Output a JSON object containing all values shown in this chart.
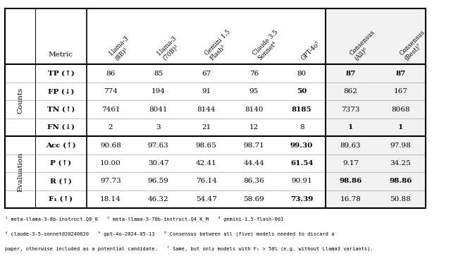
{
  "col_headers": [
    "Metric",
    "Llama-3\n(8B)¹",
    "Llama-3\n(70B)²",
    "Gemini 1.5\nFlash³",
    "Claude 3.5\nSonnet⁴",
    "GPT-4o⁵",
    "Consensus\n(All)⁶",
    "Consensus\n(Best)⁷"
  ],
  "section_labels": [
    "Counts",
    "Evaluation"
  ],
  "rows": [
    {
      "section": "Counts",
      "metric": "TP (↑)",
      "values": [
        "86",
        "85",
        "67",
        "76",
        "80",
        "87",
        "87"
      ],
      "bold_metric": true,
      "bold_values": [
        false,
        false,
        false,
        false,
        false,
        true,
        true
      ]
    },
    {
      "section": "Counts",
      "metric": "FP (↓)",
      "values": [
        "774",
        "194",
        "91",
        "95",
        "50",
        "862",
        "167"
      ],
      "bold_metric": true,
      "bold_values": [
        false,
        false,
        false,
        false,
        true,
        false,
        false
      ]
    },
    {
      "section": "Counts",
      "metric": "TN (↑)",
      "values": [
        "7461",
        "8041",
        "8144",
        "8140",
        "8185",
        "7373",
        "8068"
      ],
      "bold_metric": true,
      "bold_values": [
        false,
        false,
        false,
        false,
        true,
        false,
        false
      ]
    },
    {
      "section": "Counts",
      "metric": "FN (↓)",
      "values": [
        "2",
        "3",
        "21",
        "12",
        "8",
        "1",
        "1"
      ],
      "bold_metric": true,
      "bold_values": [
        false,
        false,
        false,
        false,
        false,
        true,
        true
      ]
    },
    {
      "section": "Evaluation",
      "metric": "Acc (↑)",
      "values": [
        "90.68",
        "97.63",
        "98.65",
        "98.71",
        "99.30",
        "89.63",
        "97.98"
      ],
      "bold_metric": true,
      "bold_values": [
        false,
        false,
        false,
        false,
        true,
        false,
        false
      ]
    },
    {
      "section": "Evaluation",
      "metric": "P (↑)",
      "values": [
        "10.00",
        "30.47",
        "42.41",
        "44.44",
        "61.54",
        "9.17",
        "34.25"
      ],
      "bold_metric": true,
      "bold_values": [
        false,
        false,
        false,
        false,
        true,
        false,
        false
      ]
    },
    {
      "section": "Evaluation",
      "metric": "R (↑)",
      "values": [
        "97.73",
        "96.59",
        "76.14",
        "86.36",
        "90.91",
        "98.86",
        "98.86"
      ],
      "bold_metric": true,
      "bold_values": [
        false,
        false,
        false,
        false,
        false,
        true,
        true
      ]
    },
    {
      "section": "Evaluation",
      "metric": "F₁ (↑)",
      "values": [
        "18.14",
        "46.32",
        "54.47",
        "58.69",
        "73.39",
        "16.78",
        "50.88"
      ],
      "bold_metric": true,
      "bold_values": [
        false,
        false,
        false,
        false,
        true,
        false,
        false
      ]
    }
  ],
  "footnotes": [
    "¹ meta-llama-3-8b-instruct.Q8_0   ² meta-llama-3-70b-instruct.Q4_K_M   ³ gemini-1.5-flash-001",
    "⁴ claude-3-5-sonnet@20240620   ⁵ gpt-4o-2024-05-13   ⁶ Consensus between all (five) models needed to discard a",
    "paper, otherwise included as a potential candidate.   ⁷ Same, but only models with F₁ > 50% (e.g. without Llama3 variants)."
  ],
  "bg_color": "#ffffff",
  "consensus_col_bg": "#f2f2f2"
}
